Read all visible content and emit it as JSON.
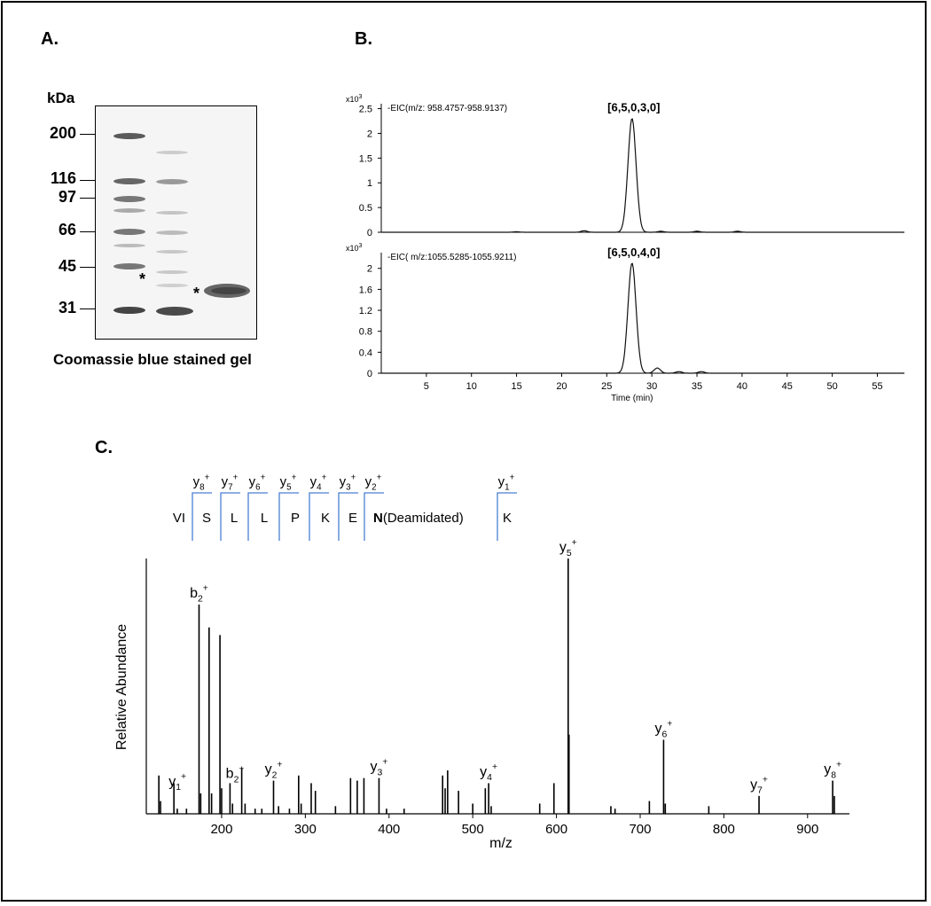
{
  "panels": {
    "a": "A.",
    "b": "B.",
    "c": "C."
  },
  "gel": {
    "unit_label": "kDa",
    "markers": [
      "200",
      "116",
      "97",
      "66",
      "45",
      "31"
    ],
    "caption": "Coomassie blue stained gel",
    "star_symbol": "*"
  },
  "chart_data": [
    {
      "type": "line",
      "id": "eic-top",
      "title": "-EIC(m/z: 958.4757-958.9137)",
      "annotation": "[6,5,0,3,0]",
      "y_scale_label": "x10",
      "y_scale_exp": "3",
      "ylim": [
        0,
        2.6
      ],
      "yticks": [
        "2.5",
        "2",
        "1.5",
        "1",
        "0.5",
        "0"
      ],
      "ytick_values": [
        2.5,
        2,
        1.5,
        1,
        0.5,
        0
      ],
      "xlim": [
        0,
        58
      ],
      "peak_center": 27.8,
      "peak_height": 2.3,
      "peak_width": 0.45,
      "minor_peaks": [
        [
          22.5,
          0.03
        ],
        [
          31.0,
          0.02
        ],
        [
          35.0,
          0.02
        ],
        [
          39.5,
          0.02
        ],
        [
          15.0,
          0.01
        ]
      ]
    },
    {
      "type": "line",
      "id": "eic-bottom",
      "title": "-EIC( m/z:1055.5285-1055.9211)",
      "annotation": "[6,5,0,4,0]",
      "y_scale_label": "x10",
      "y_scale_exp": "3",
      "ylim": [
        0,
        2.3
      ],
      "yticks": [
        "2",
        "1.6",
        "1.2",
        "0.8",
        "0.4",
        "0"
      ],
      "ytick_values": [
        2,
        1.6,
        1.2,
        0.8,
        0.4,
        0
      ],
      "xlim": [
        0,
        58
      ],
      "xticks": [
        "5",
        "10",
        "15",
        "20",
        "25",
        "30",
        "35",
        "40",
        "45",
        "50",
        "55"
      ],
      "xtick_values": [
        5,
        10,
        15,
        20,
        25,
        30,
        35,
        40,
        45,
        50,
        55
      ],
      "xlabel": "Time (min)",
      "peak_center": 27.8,
      "peak_height": 2.1,
      "peak_width": 0.45,
      "minor_peaks": [
        [
          30.6,
          0.1
        ],
        [
          33.0,
          0.03
        ],
        [
          35.5,
          0.03
        ]
      ]
    },
    {
      "type": "bar",
      "id": "msms",
      "xlabel": "m/z",
      "ylabel": "Relative Abundance",
      "xlim": [
        110,
        950
      ],
      "ylim": [
        0,
        100
      ],
      "xticks": [
        "200",
        "300",
        "400",
        "500",
        "600",
        "700",
        "800",
        "900"
      ],
      "xtick_values": [
        200,
        300,
        400,
        500,
        600,
        700,
        800,
        900
      ],
      "peaks": [
        [
          125,
          15
        ],
        [
          127,
          5
        ],
        [
          143,
          12
        ],
        [
          147,
          2
        ],
        [
          158,
          2
        ],
        [
          173,
          82
        ],
        [
          175,
          8
        ],
        [
          185,
          73
        ],
        [
          188,
          8
        ],
        [
          198,
          70
        ],
        [
          200,
          10
        ],
        [
          210,
          12
        ],
        [
          213,
          4
        ],
        [
          224,
          18
        ],
        [
          228,
          4
        ],
        [
          240,
          2
        ],
        [
          248,
          2
        ],
        [
          262,
          13
        ],
        [
          268,
          3
        ],
        [
          281,
          2
        ],
        [
          292,
          15
        ],
        [
          295,
          4
        ],
        [
          307,
          12
        ],
        [
          312,
          9
        ],
        [
          336,
          3
        ],
        [
          354,
          14
        ],
        [
          362,
          13
        ],
        [
          370,
          14
        ],
        [
          388,
          14
        ],
        [
          397,
          2
        ],
        [
          418,
          2
        ],
        [
          464,
          15
        ],
        [
          467,
          10
        ],
        [
          470,
          17
        ],
        [
          483,
          9
        ],
        [
          500,
          4
        ],
        [
          515,
          10
        ],
        [
          519,
          12
        ],
        [
          522,
          3
        ],
        [
          580,
          4
        ],
        [
          597,
          12
        ],
        [
          614,
          100
        ],
        [
          615,
          31
        ],
        [
          665,
          3
        ],
        [
          670,
          2
        ],
        [
          711,
          5
        ],
        [
          728,
          29
        ],
        [
          730,
          4
        ],
        [
          782,
          3
        ],
        [
          842,
          7
        ],
        [
          930,
          13
        ],
        [
          932,
          7
        ]
      ],
      "labels": [
        {
          "base": "y",
          "sub": "1",
          "sup": "+",
          "mz": 143
        },
        {
          "base": "b",
          "sub": "2",
          "sup": "+",
          "mz": 173
        },
        {
          "base": "b",
          "sub": "2",
          "sup": "+",
          "mz": 216
        },
        {
          "base": "y",
          "sub": "2",
          "sup": "+",
          "mz": 262
        },
        {
          "base": "y",
          "sub": "3",
          "sup": "+",
          "mz": 388
        },
        {
          "base": "y",
          "sub": "4",
          "sup": "+",
          "mz": 519
        },
        {
          "base": "y",
          "sub": "5",
          "sup": "+",
          "mz": 614
        },
        {
          "base": "y",
          "sub": "6",
          "sup": "+",
          "mz": 728
        },
        {
          "base": "y",
          "sub": "7",
          "sup": "+",
          "mz": 842
        },
        {
          "base": "y",
          "sub": "8",
          "sup": "+",
          "mz": 930
        }
      ]
    }
  ],
  "sequence": {
    "residues": [
      "VI",
      "S",
      "L",
      "L",
      "P",
      "K",
      "E",
      "N",
      "K"
    ],
    "modification": "(Deamidated)",
    "ions": [
      {
        "base": "y",
        "sub": "8",
        "sup": "+"
      },
      {
        "base": "y",
        "sub": "7",
        "sup": "+"
      },
      {
        "base": "y",
        "sub": "6",
        "sup": "+"
      },
      {
        "base": "y",
        "sub": "5",
        "sup": "+"
      },
      {
        "base": "y",
        "sub": "4",
        "sup": "+"
      },
      {
        "base": "y",
        "sub": "3",
        "sup": "+"
      },
      {
        "base": "y",
        "sub": "2",
        "sup": "+"
      },
      {
        "base": "y",
        "sub": "1",
        "sup": "+"
      }
    ],
    "bracket_color": "#4a7fd4"
  }
}
